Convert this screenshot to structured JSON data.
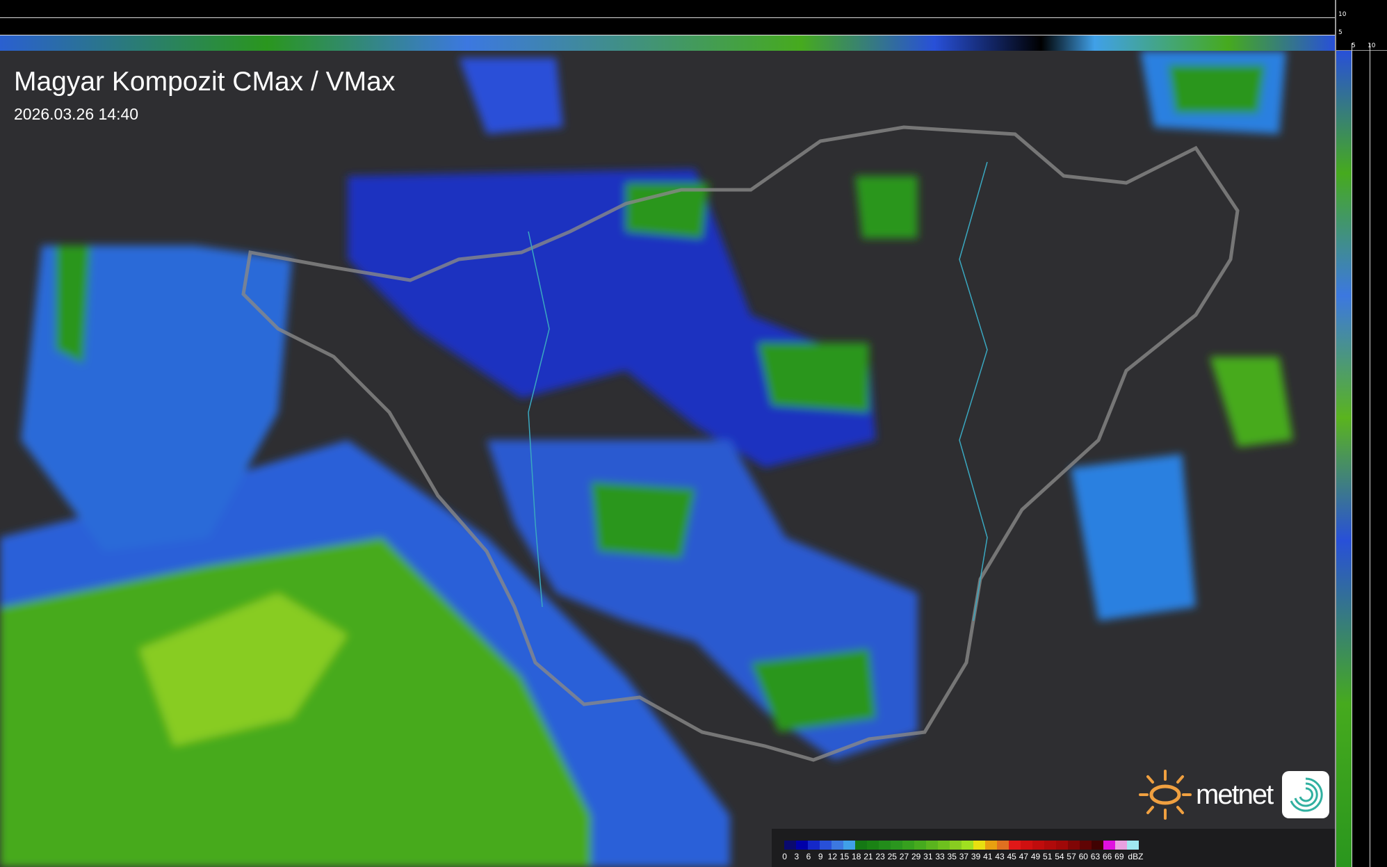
{
  "title": "Magyar Kompozit CMax / VMax",
  "timestamp": "2026.03.26 14:40",
  "profile_scale": {
    "vertical_ticks": [
      "10",
      "5"
    ],
    "horizontal_ticks": [
      "5",
      "10"
    ]
  },
  "legend": {
    "unit": "dBZ",
    "labels": [
      "0",
      "3",
      "6",
      "9",
      "12",
      "15",
      "18",
      "21",
      "23",
      "25",
      "27",
      "29",
      "31",
      "33",
      "35",
      "37",
      "39",
      "41",
      "43",
      "45",
      "47",
      "49",
      "51",
      "54",
      "57",
      "60",
      "63",
      "66",
      "69"
    ],
    "colors": [
      "#0a0a6e",
      "#0000a8",
      "#1428c8",
      "#2850d8",
      "#3c78e0",
      "#40a0e8",
      "#147814",
      "#1a8214",
      "#228c1a",
      "#2a961e",
      "#36a01e",
      "#46aa1e",
      "#5ab41e",
      "#6ec01e",
      "#88cc20",
      "#a0e020",
      "#e8e010",
      "#e8a010",
      "#e07020",
      "#e01818",
      "#d01010",
      "#c00c0c",
      "#b00a0a",
      "#a00808",
      "#800606",
      "#600404",
      "#400202",
      "#e010e0",
      "#e8a0e0",
      "#a0e8f0"
    ]
  },
  "logo": {
    "brand": "metnet",
    "sun_color": "#f0a040",
    "icon_color": "#30b0a0"
  }
}
